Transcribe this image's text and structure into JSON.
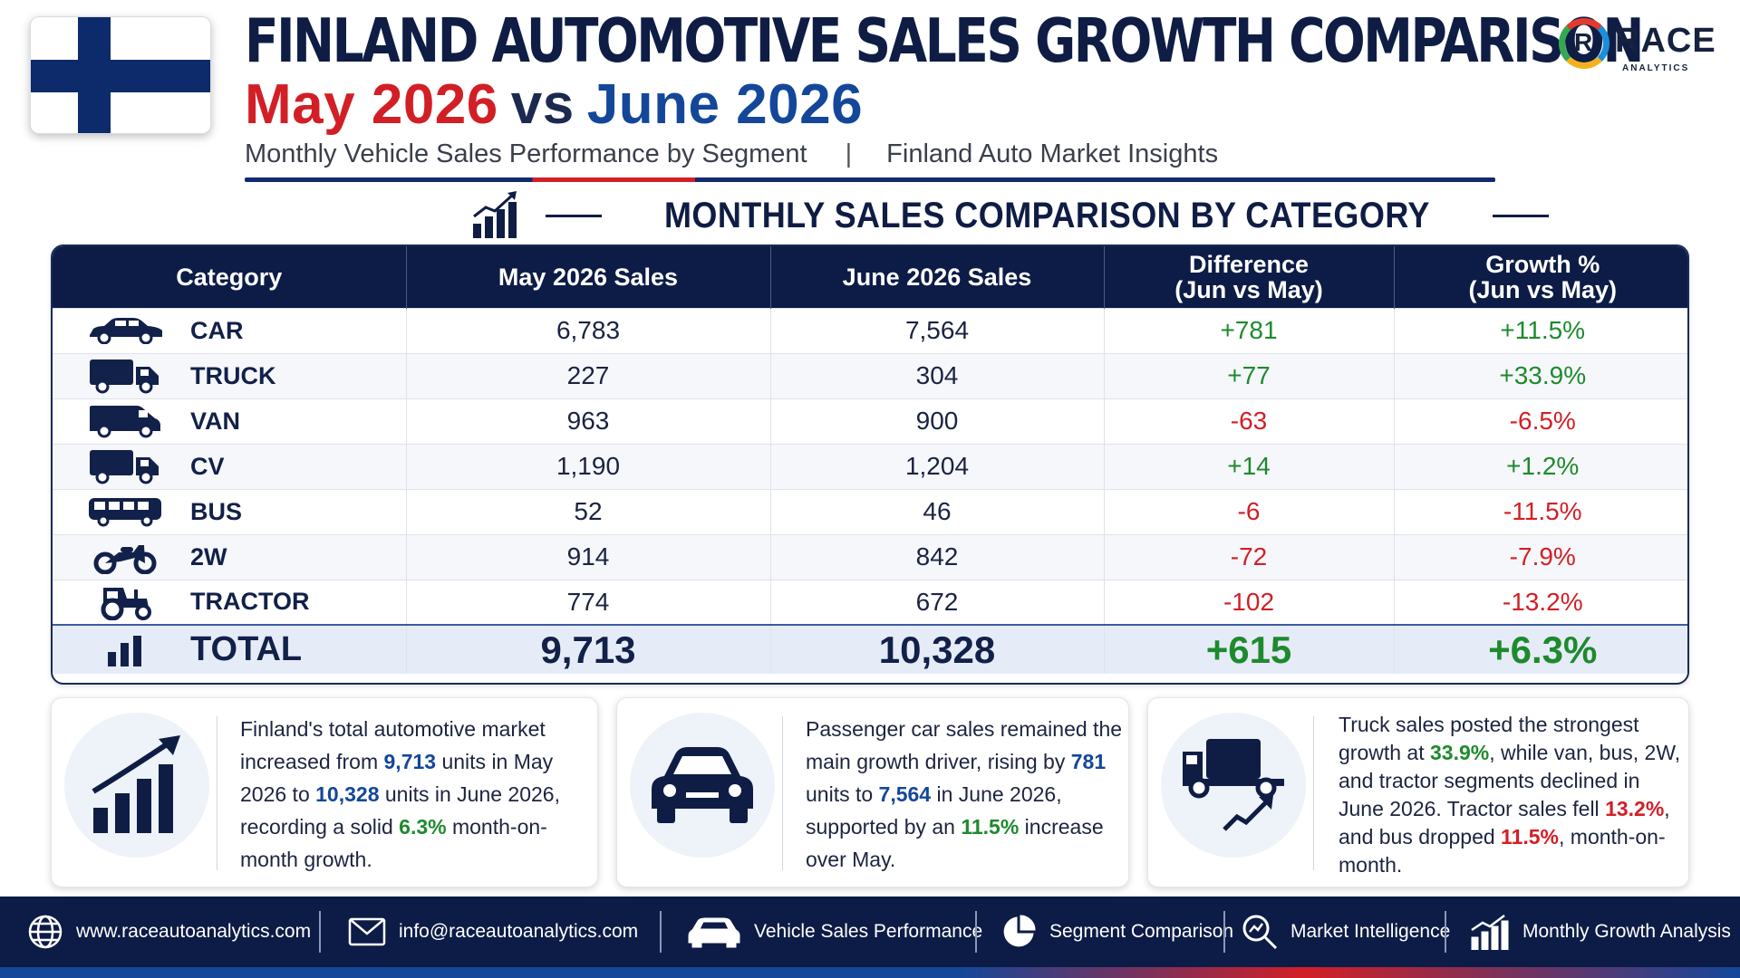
{
  "header": {
    "title": "FINLAND AUTOMOTIVE SALES GROWTH COMPARISON",
    "subtitle_may": "May 2026",
    "subtitle_vs": "vs",
    "subtitle_june": "June 2026",
    "tagline_left": "Monthly Vehicle Sales Performance by Segment",
    "tagline_sep": "|",
    "tagline_right": "Finland Auto Market Insights"
  },
  "logo": {
    "letter": "R",
    "name": "RACE",
    "sub": "ANALYTICS"
  },
  "section_title": "MONTHLY SALES COMPARISON BY CATEGORY",
  "table": {
    "headers": {
      "category": "Category",
      "may": "May 2026 Sales",
      "june": "June 2026 Sales",
      "diff_l1": "Difference",
      "diff_l2": "(Jun vs May)",
      "growth_l1": "Growth %",
      "growth_l2": "(Jun vs May)"
    },
    "rows": [
      {
        "icon": "car-icon",
        "category": "CAR",
        "may": "6,783",
        "june": "7,564",
        "diff": "+781",
        "growth": "+11.5%",
        "trend": "pos"
      },
      {
        "icon": "truck-icon",
        "category": "TRUCK",
        "may": "227",
        "june": "304",
        "diff": "+77",
        "growth": "+33.9%",
        "trend": "pos"
      },
      {
        "icon": "van-icon",
        "category": "VAN",
        "may": "963",
        "june": "900",
        "diff": "-63",
        "growth": "-6.5%",
        "trend": "neg"
      },
      {
        "icon": "cv-truck-icon",
        "category": "CV",
        "may": "1,190",
        "june": "1,204",
        "diff": "+14",
        "growth": "+1.2%",
        "trend": "pos"
      },
      {
        "icon": "bus-icon",
        "category": "BUS",
        "may": "52",
        "june": "46",
        "diff": "-6",
        "growth": "-11.5%",
        "trend": "neg"
      },
      {
        "icon": "motorcycle-icon",
        "category": "2W",
        "may": "914",
        "june": "842",
        "diff": "-72",
        "growth": "-7.9%",
        "trend": "neg"
      },
      {
        "icon": "tractor-icon",
        "category": "TRACTOR",
        "may": "774",
        "june": "672",
        "diff": "-102",
        "growth": "-13.2%",
        "trend": "neg"
      }
    ],
    "total": {
      "icon": "bar-chart-icon",
      "category": "TOTAL",
      "may": "9,713",
      "june": "10,328",
      "diff": "+615",
      "growth": "+6.3%"
    }
  },
  "cards": [
    {
      "icon": "growth-chart-icon",
      "t1": "Finland's total automotive market increased from ",
      "b1": "9,713",
      "t2": " units in May 2026 to ",
      "b2": "10,328",
      "t3": " units in June 2026, recording a solid ",
      "b3": "6.3%",
      "t4": " month-on-month growth."
    },
    {
      "icon": "car-front-icon",
      "t1": "Passenger car sales remained the main growth driver, rising by ",
      "b1": "781",
      "t2": " units to ",
      "b2": "7,564",
      "t3": " in June 2026, supported by an ",
      "b3": "11.5%",
      "t4": " increase over May."
    },
    {
      "icon": "truck-growth-icon",
      "t1": "Truck sales posted the strongest growth at ",
      "b1": "33.9%",
      "t2": ", while van, bus, 2W, and tractor segments declined in June 2026. Tractor sales fell ",
      "b2": "13.2%",
      "t3": ", and bus dropped ",
      "b3": "11.5%",
      "t4": ", month-on-month."
    }
  ],
  "footer": {
    "website": "www.raceautoanalytics.com",
    "email": "info@raceautoanalytics.com",
    "item1": "Vehicle Sales Performance",
    "item2": "Segment Comparison",
    "item3": "Market Intelligence",
    "item4": "Monthly Growth Analysis"
  },
  "colors": {
    "navy": "#0d1c46",
    "red": "#d21f26",
    "blue": "#14479a",
    "green": "#1e8a2e"
  }
}
